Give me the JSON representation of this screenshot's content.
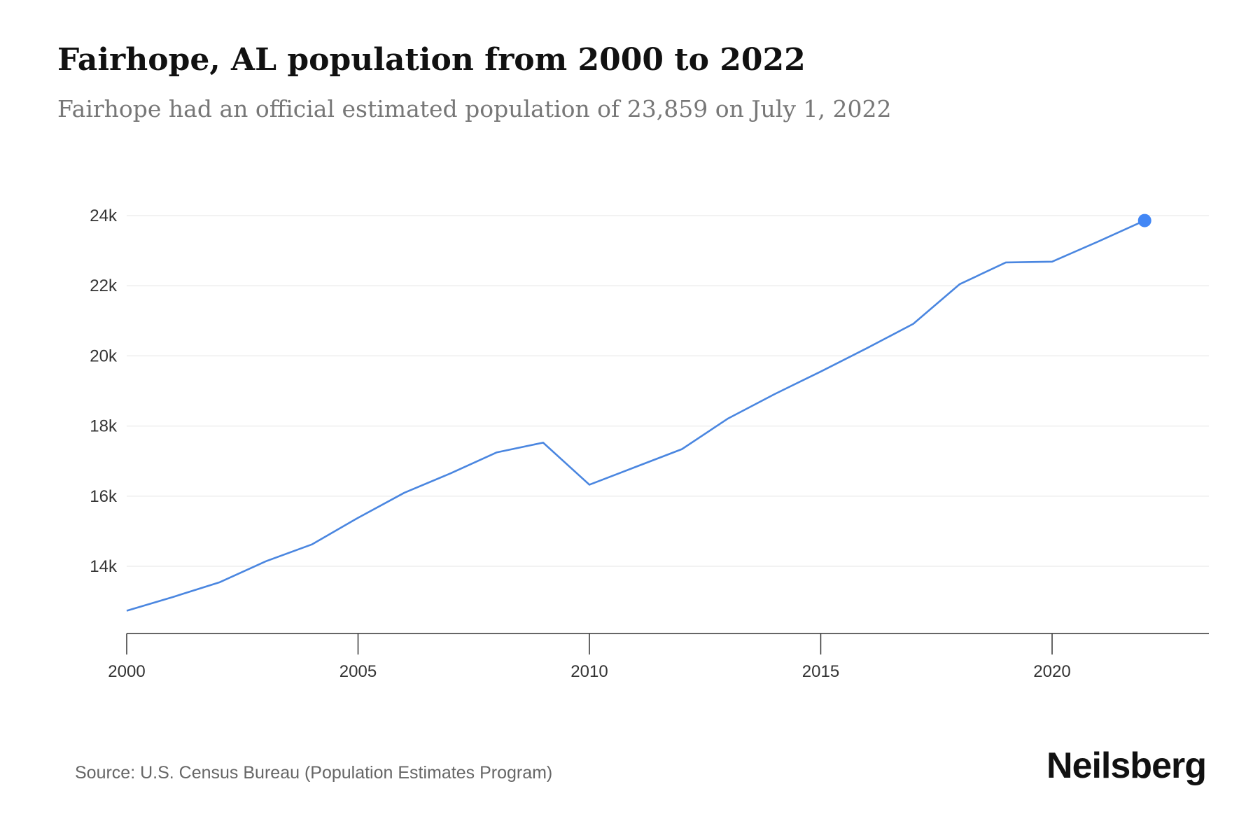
{
  "header": {
    "title": "Fairhope, AL population from 2000 to 2022",
    "subtitle": "Fairhope had an official estimated population of 23,859 on July 1, 2022"
  },
  "footer": {
    "source": "Source: U.S. Census Bureau (Population Estimates Program)",
    "brand": "Neilsberg"
  },
  "chart_data": {
    "type": "line",
    "title": "Fairhope, AL population from 2000 to 2022",
    "subtitle": "Fairhope had an official estimated population of 23,859 on July 1, 2022",
    "xlabel": "",
    "ylabel": "",
    "x": [
      2000,
      2001,
      2002,
      2003,
      2004,
      2005,
      2006,
      2007,
      2008,
      2009,
      2010,
      2011,
      2012,
      2013,
      2014,
      2015,
      2016,
      2017,
      2018,
      2019,
      2020,
      2021,
      2022
    ],
    "series": [
      {
        "values": [
          12733,
          13125,
          13540,
          14139,
          14622,
          15383,
          16097,
          16650,
          17249,
          17526,
          16327,
          16834,
          17341,
          18217,
          18908,
          19553,
          20221,
          20913,
          22042,
          22664,
          22687,
          23263,
          23859
        ]
      }
    ],
    "xlim": [
      2000,
      2023.4
    ],
    "ylim": [
      12200,
      24000
    ],
    "x_ticks": [
      2000,
      2005,
      2010,
      2015,
      2020
    ],
    "x_tick_labels": [
      "2000",
      "2005",
      "2010",
      "2015",
      "2020"
    ],
    "y_ticks": [
      14000,
      16000,
      18000,
      20000,
      22000,
      24000
    ],
    "y_tick_labels": [
      "14k",
      "16k",
      "18k",
      "20k",
      "22k",
      "24k"
    ],
    "grid": "horizontal",
    "highlight_last_point": true,
    "colors": {
      "line": "#4a86e0",
      "marker": "#4287f5",
      "grid": "#eeeeee",
      "axis": "#333333"
    }
  }
}
